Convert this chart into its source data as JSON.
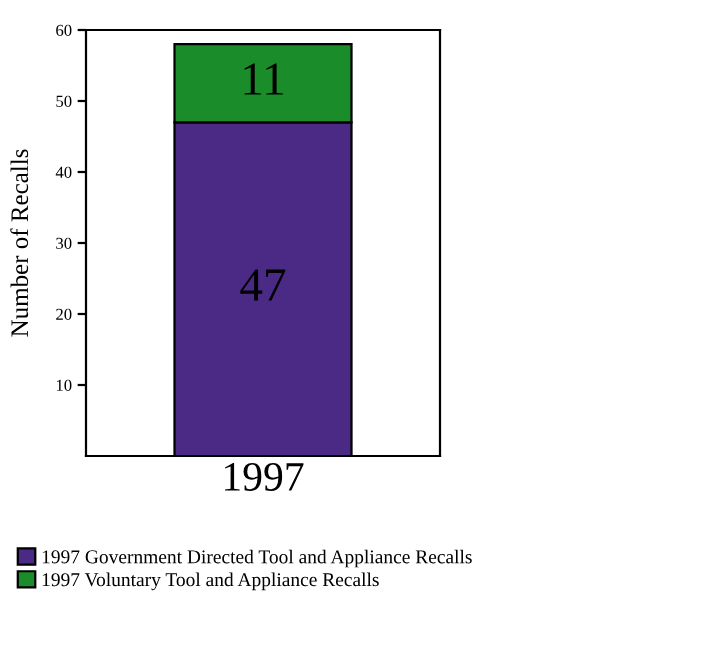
{
  "chart_data": {
    "type": "bar",
    "stacked": true,
    "categories": [
      "1997"
    ],
    "series": [
      {
        "name": "1997 Government Directed Tool and Appliance Recalls",
        "color": "#4b2a86",
        "values": [
          47
        ]
      },
      {
        "name": "1997 Voluntary Tool and Appliance Recalls",
        "color": "#1a8c2a",
        "values": [
          11
        ]
      }
    ],
    "ylabel": "Number of Recalls",
    "ylim": [
      0,
      60
    ],
    "yticks": [
      10,
      20,
      30,
      40,
      50,
      60
    ],
    "data_labels": true,
    "legend": "bottom",
    "grid": false
  }
}
